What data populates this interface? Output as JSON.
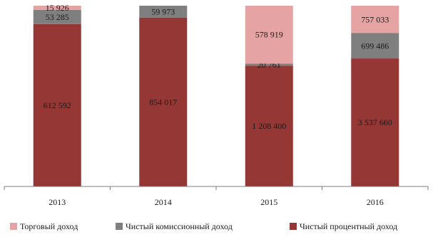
{
  "chart_data": {
    "type": "bar",
    "stacked": true,
    "categories": [
      "2013",
      "2014",
      "2015",
      "2016"
    ],
    "series": [
      {
        "name": "Чистый процентный доход",
        "color": "#953735",
        "values": [
          612592,
          854017,
          1208400,
          3537660
        ],
        "labels": [
          "612 592",
          "854 017",
          "1 208 400",
          "3 537 660"
        ]
      },
      {
        "name": "Чистый комиссионный доход",
        "color": "#7f7f7f",
        "values": [
          53285,
          59973,
          20761,
          699486
        ],
        "labels": [
          "53 285",
          "59 973",
          "20 761",
          "699 486"
        ]
      },
      {
        "name": "Торговый доход",
        "color": "#e6a3a3",
        "values": [
          15926,
          0,
          578919,
          757033
        ],
        "labels": [
          "15 926",
          "",
          "578 919",
          "757 033"
        ]
      }
    ],
    "legend_order": [
      2,
      1,
      0
    ],
    "legend_position": "bottom",
    "normalized": true,
    "grid": false,
    "title": "",
    "xlabel": "",
    "ylabel": ""
  }
}
